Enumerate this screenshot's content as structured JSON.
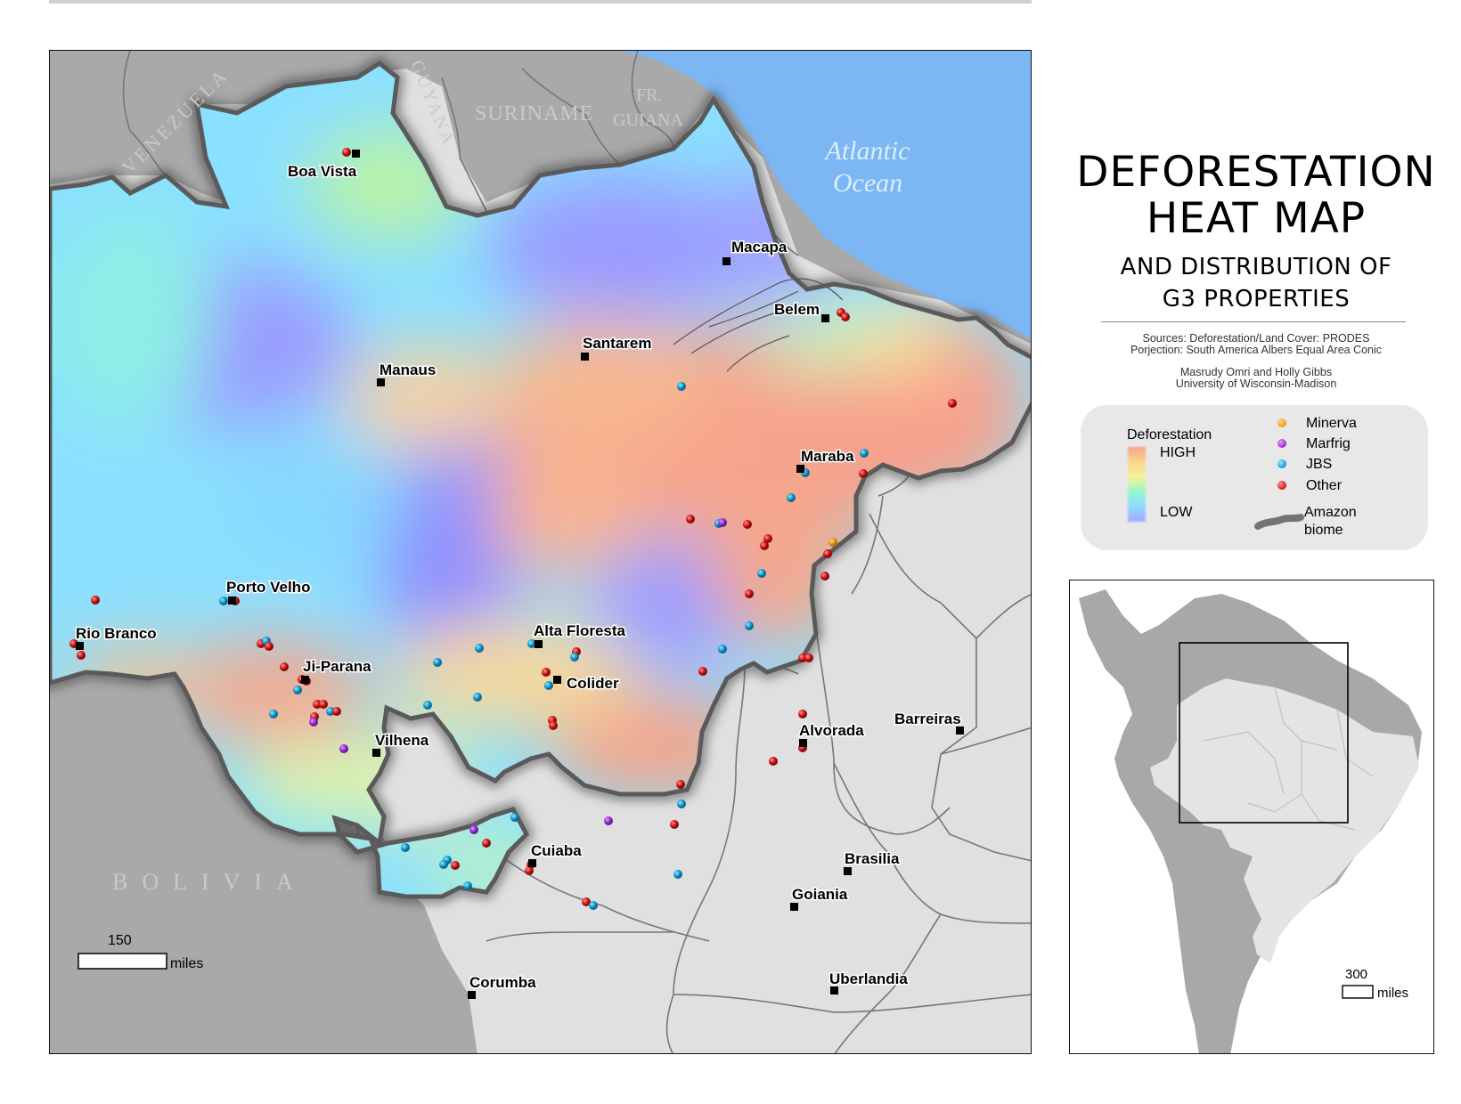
{
  "title": {
    "main": "DEFORESTATION\nHEAT MAP",
    "sub": "AND DISTRIBUTION OF\nG3 PROPERTIES"
  },
  "sources": {
    "line1": "Sources: Deforestation/Land Cover: PRODES",
    "line2": "Porjection: South America Albers Equal Area Conic"
  },
  "credits": {
    "line1": "Masrudy Omri and Holly Gibbs",
    "line2": "University of Wisconsin-Madison"
  },
  "legend": {
    "ramp_title": "Deforestation",
    "high": "HIGH",
    "low": "LOW",
    "companies": [
      {
        "label": "Minerva",
        "color": "#f5a623"
      },
      {
        "label": "Marfrig",
        "color": "#a33be0"
      },
      {
        "label": "JBS",
        "color": "#1ea6d8"
      },
      {
        "label": "Other",
        "color": "#e02020"
      }
    ],
    "biome_label_1": "Amazon",
    "biome_label_2": "biome"
  },
  "countries": {
    "venezuela": "VENEZUELA",
    "guyana": "GUYANA",
    "suriname": "SURINAME",
    "fr_guiana_1": "FR.",
    "fr_guiana_2": "GUIANA",
    "bolivia": "BOLIVIA",
    "ocean_1": "Atlantic",
    "ocean_2": "Ocean"
  },
  "cities": [
    {
      "name": "Boa Vista"
    },
    {
      "name": "Macapa"
    },
    {
      "name": "Belem"
    },
    {
      "name": "Santarem"
    },
    {
      "name": "Manaus"
    },
    {
      "name": "Maraba"
    },
    {
      "name": "Porto Velho"
    },
    {
      "name": "Rio Branco"
    },
    {
      "name": "Alta Floresta"
    },
    {
      "name": "Ji-Parana"
    },
    {
      "name": "Colider"
    },
    {
      "name": "Vilhena"
    },
    {
      "name": "Alvorada"
    },
    {
      "name": "Barreiras"
    },
    {
      "name": "Cuiaba"
    },
    {
      "name": "Brasilia"
    },
    {
      "name": "Goiania"
    },
    {
      "name": "Corumba"
    },
    {
      "name": "Uberlandia"
    }
  ],
  "scale_bar": {
    "value": "150",
    "unit": "miles"
  },
  "inset": {
    "scale_value": "300",
    "scale_unit": "miles"
  },
  "colors": {
    "ocean": "#7db7f3",
    "neighbor_land": "#a9a9a9",
    "brazil_land": "#e0e0e0",
    "biome_outline": "#555555"
  }
}
